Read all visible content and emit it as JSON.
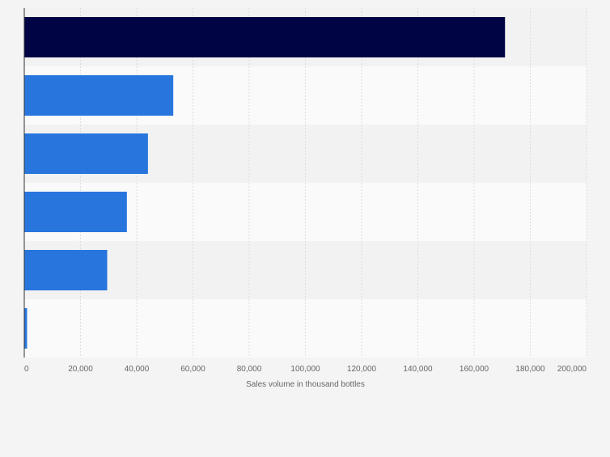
{
  "chart_data": {
    "type": "bar",
    "orientation": "horizontal",
    "title": "",
    "xlabel": "Sales volume in thousand bottles",
    "ylabel": "",
    "xlim": [
      0,
      200000
    ],
    "x_ticks": [
      "0",
      "20,000",
      "40,000",
      "60,000",
      "80,000",
      "100,000",
      "120,000",
      "140,000",
      "160,000",
      "180,000",
      "200,000"
    ],
    "x_tick_values": [
      0,
      20000,
      40000,
      60000,
      80000,
      100000,
      120000,
      140000,
      160000,
      180000,
      200000
    ],
    "categories": [
      "",
      "",
      "",
      "",
      "",
      ""
    ],
    "values": [
      171000,
      53000,
      44000,
      36500,
      29500,
      1000
    ],
    "grid": true,
    "legend": "none",
    "colors": {
      "highlight": "#000444",
      "bar": "#2876dd",
      "band_dark": "#f2f2f2",
      "band_light": "#fafafa",
      "grid": "#dcdcdc",
      "axis": "#333333",
      "text": "#666666"
    }
  }
}
